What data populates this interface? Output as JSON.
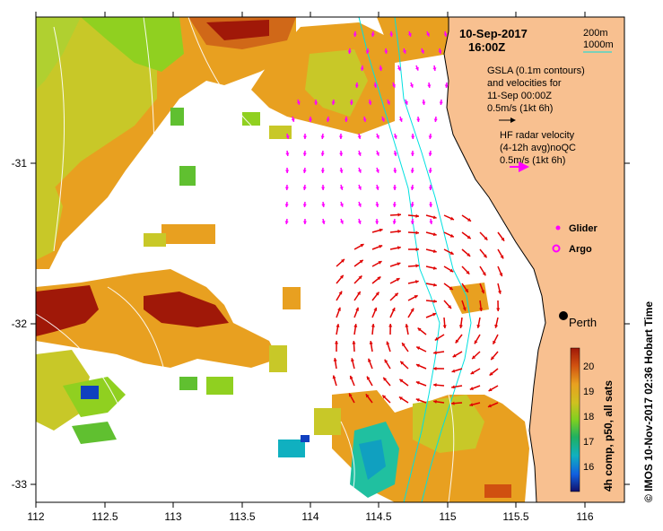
{
  "map": {
    "date": "10-Sep-2017",
    "time": "16:00Z",
    "depth_legend": {
      "contour_1": "200m",
      "contour_2": "1000m"
    },
    "gsla_text": [
      "GSLA (0.1m contours)",
      "and velocities for",
      "11-Sep 00:00Z",
      "0.5m/s (1kt 6h)"
    ],
    "hf_text": [
      "HF radar velocity",
      "(4-12h avg)noQC",
      "0.5m/s (1kt 6h)"
    ],
    "glider_label": "Glider",
    "argo_label": "Argo",
    "city_label": "Perth",
    "colorbar_label": "4h comp, p50, all sats",
    "colorbar_ticks": [
      "16",
      "17",
      "18",
      "19",
      "20"
    ],
    "credit": "© IMOS 10-Nov-2017 02:36 Hobart Time",
    "x_ticks": [
      "112",
      "112.5",
      "113",
      "113.5",
      "114",
      "114.5",
      "115",
      "115.5",
      "116"
    ],
    "y_ticks": [
      "-31",
      "-32",
      "-33"
    ],
    "colors": {
      "land": "#f8c090",
      "coast_line": "#000000",
      "isobath": "#00e0e0",
      "gsla_arrow": "#000000",
      "hf_arrow": "#e00000",
      "glider": "#ff00ff",
      "sst_warm": "#e8a020",
      "sst_hot": "#a01808",
      "sst_cool": "#90d020"
    }
  }
}
